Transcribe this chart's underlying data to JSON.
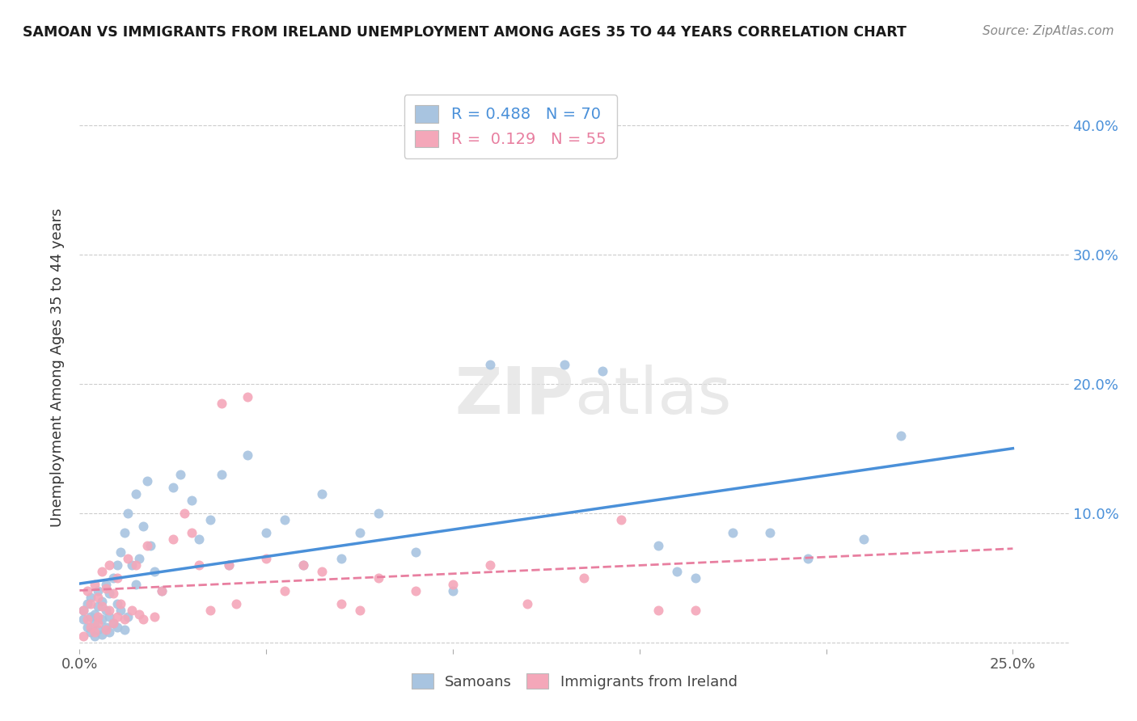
{
  "title": "SAMOAN VS IMMIGRANTS FROM IRELAND UNEMPLOYMENT AMONG AGES 35 TO 44 YEARS CORRELATION CHART",
  "source": "Source: ZipAtlas.com",
  "ylabel": "Unemployment Among Ages 35 to 44 years",
  "xlim": [
    0.0,
    0.265
  ],
  "ylim": [
    -0.005,
    0.43
  ],
  "xticks": [
    0.0,
    0.05,
    0.1,
    0.15,
    0.2,
    0.25
  ],
  "yticks": [
    0.0,
    0.1,
    0.2,
    0.3,
    0.4
  ],
  "samoan_color": "#a8c4e0",
  "ireland_color": "#f4a7b9",
  "samoan_line_color": "#4a90d9",
  "ireland_line_color": "#e87fa0",
  "samoan_R": 0.488,
  "samoan_N": 70,
  "ireland_R": 0.129,
  "ireland_N": 55,
  "samoan_x": [
    0.001,
    0.001,
    0.002,
    0.002,
    0.003,
    0.003,
    0.003,
    0.004,
    0.004,
    0.004,
    0.005,
    0.005,
    0.005,
    0.006,
    0.006,
    0.006,
    0.007,
    0.007,
    0.007,
    0.008,
    0.008,
    0.008,
    0.009,
    0.009,
    0.01,
    0.01,
    0.01,
    0.011,
    0.011,
    0.012,
    0.012,
    0.013,
    0.013,
    0.014,
    0.015,
    0.015,
    0.016,
    0.017,
    0.018,
    0.019,
    0.02,
    0.022,
    0.025,
    0.027,
    0.03,
    0.032,
    0.035,
    0.038,
    0.04,
    0.045,
    0.05,
    0.055,
    0.06,
    0.065,
    0.07,
    0.075,
    0.08,
    0.09,
    0.1,
    0.11,
    0.13,
    0.14,
    0.155,
    0.16,
    0.165,
    0.175,
    0.185,
    0.195,
    0.21,
    0.22
  ],
  "samoan_y": [
    0.018,
    0.025,
    0.012,
    0.03,
    0.008,
    0.02,
    0.035,
    0.015,
    0.022,
    0.005,
    0.01,
    0.028,
    0.04,
    0.018,
    0.032,
    0.006,
    0.025,
    0.012,
    0.045,
    0.008,
    0.02,
    0.038,
    0.015,
    0.05,
    0.012,
    0.03,
    0.06,
    0.025,
    0.07,
    0.01,
    0.085,
    0.02,
    0.1,
    0.06,
    0.045,
    0.115,
    0.065,
    0.09,
    0.125,
    0.075,
    0.055,
    0.04,
    0.12,
    0.13,
    0.11,
    0.08,
    0.095,
    0.13,
    0.06,
    0.145,
    0.085,
    0.095,
    0.06,
    0.115,
    0.065,
    0.085,
    0.1,
    0.07,
    0.04,
    0.215,
    0.215,
    0.21,
    0.075,
    0.055,
    0.05,
    0.085,
    0.085,
    0.065,
    0.08,
    0.16
  ],
  "ireland_x": [
    0.001,
    0.001,
    0.002,
    0.002,
    0.003,
    0.003,
    0.004,
    0.004,
    0.005,
    0.005,
    0.005,
    0.006,
    0.006,
    0.007,
    0.007,
    0.008,
    0.008,
    0.009,
    0.009,
    0.01,
    0.01,
    0.011,
    0.012,
    0.013,
    0.014,
    0.015,
    0.016,
    0.017,
    0.018,
    0.02,
    0.022,
    0.025,
    0.028,
    0.03,
    0.032,
    0.035,
    0.038,
    0.04,
    0.042,
    0.045,
    0.05,
    0.055,
    0.06,
    0.065,
    0.07,
    0.075,
    0.08,
    0.09,
    0.1,
    0.11,
    0.12,
    0.135,
    0.145,
    0.155,
    0.165
  ],
  "ireland_y": [
    0.025,
    0.005,
    0.018,
    0.04,
    0.012,
    0.03,
    0.008,
    0.045,
    0.02,
    0.035,
    0.015,
    0.028,
    0.055,
    0.01,
    0.042,
    0.025,
    0.06,
    0.015,
    0.038,
    0.02,
    0.05,
    0.03,
    0.018,
    0.065,
    0.025,
    0.06,
    0.022,
    0.018,
    0.075,
    0.02,
    0.04,
    0.08,
    0.1,
    0.085,
    0.06,
    0.025,
    0.185,
    0.06,
    0.03,
    0.19,
    0.065,
    0.04,
    0.06,
    0.055,
    0.03,
    0.025,
    0.05,
    0.04,
    0.045,
    0.06,
    0.03,
    0.05,
    0.095,
    0.025,
    0.025
  ]
}
